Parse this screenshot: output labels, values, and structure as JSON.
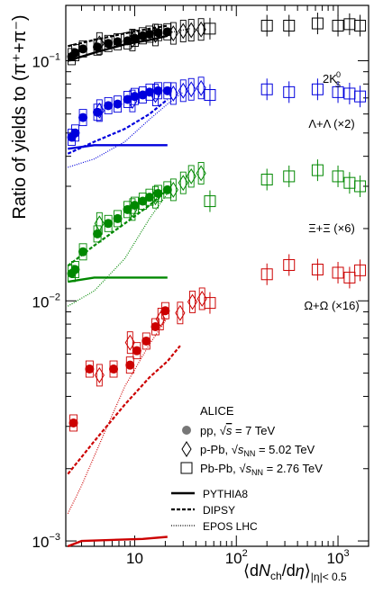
{
  "chart_data": {
    "type": "scatter",
    "title": "",
    "ylabel": "Ratio of yields to (π⁺+π⁻)",
    "xlabel_html": "⟨dN<sub>ch</sub>/dη⟩<sub>|η|&lt;0.5</sub>",
    "xlabel_parts": {
      "a": "⟨d",
      "N": "N",
      "ch": "ch",
      "mid": "/d",
      "eta": "η",
      "close": "⟩",
      "sub": "|η|< 0.5"
    },
    "xscale": "log",
    "yscale": "log",
    "xlim": [
      2.1,
      2000
    ],
    "ylim": [
      0.00095,
      0.17
    ],
    "xticks": [
      {
        "label": "10",
        "value": 10,
        "exp": ""
      },
      {
        "label": "10",
        "value": 100,
        "exp": "2"
      },
      {
        "label": "10",
        "value": 1000,
        "exp": "3"
      }
    ],
    "yticks": [
      {
        "label": "10",
        "value": 0.001,
        "exp": "−3"
      },
      {
        "label": "10",
        "value": 0.01,
        "exp": "−2"
      },
      {
        "label": "10",
        "value": 0.1,
        "exp": "−1"
      }
    ],
    "colors": {
      "k": "#000000",
      "l": "#0000dd",
      "x": "#008800",
      "o": "#cc0000"
    },
    "species": [
      {
        "id": "k",
        "label": "2K⁰S",
        "label_main": "2K",
        "label_sup": "0",
        "label_sub": "S",
        "label_y": 0.081,
        "pp": [
          [
            2.4,
            0.104
          ],
          [
            2.6,
            0.108
          ],
          [
            3.1,
            0.112
          ],
          [
            4.3,
            0.114
          ],
          [
            5.5,
            0.118
          ],
          [
            6.8,
            0.12
          ],
          [
            8.5,
            0.121
          ],
          [
            10,
            0.124
          ],
          [
            12,
            0.127
          ],
          [
            14,
            0.129
          ],
          [
            17,
            0.131
          ],
          [
            21,
            0.132
          ]
        ],
        "ppb": [
          [
            4.5,
            0.118
          ],
          [
            9.5,
            0.122
          ],
          [
            16,
            0.128
          ],
          [
            24,
            0.13
          ],
          [
            30,
            0.133
          ],
          [
            36,
            0.134
          ],
          [
            45,
            0.135
          ]
        ],
        "pbpb": [
          [
            55,
            0.136
          ],
          [
            200,
            0.14
          ],
          [
            330,
            0.14
          ],
          [
            630,
            0.143
          ],
          [
            1000,
            0.14
          ],
          [
            1300,
            0.142
          ],
          [
            1650,
            0.14
          ]
        ],
        "pythia": [
          [
            2.2,
            0.1
          ],
          [
            4,
            0.108
          ],
          [
            8,
            0.117
          ],
          [
            14,
            0.122
          ],
          [
            21,
            0.127
          ]
        ],
        "dipsy": [
          [
            2.2,
            0.115
          ],
          [
            4,
            0.122
          ],
          [
            8,
            0.13
          ],
          [
            14,
            0.136
          ],
          [
            21,
            0.14
          ]
        ],
        "epos": [
          [
            2.2,
            0.099
          ],
          [
            5,
            0.111
          ],
          [
            10,
            0.121
          ],
          [
            20,
            0.13
          ],
          [
            35,
            0.136
          ]
        ]
      },
      {
        "id": "l",
        "label": "Λ+Λ̄ (×2)",
        "label_main": "Λ+Λ (×2)",
        "label_y": 0.0525,
        "pp": [
          [
            2.4,
            0.048
          ],
          [
            2.6,
            0.05
          ],
          [
            3.1,
            0.058
          ],
          [
            4.3,
            0.061
          ],
          [
            5.5,
            0.065
          ],
          [
            6.8,
            0.066
          ],
          [
            8.5,
            0.069
          ],
          [
            10,
            0.071
          ],
          [
            12,
            0.072
          ],
          [
            14,
            0.074
          ],
          [
            17,
            0.075
          ],
          [
            21,
            0.075
          ]
        ],
        "ppb": [
          [
            4.5,
            0.062
          ],
          [
            9.5,
            0.068
          ],
          [
            16,
            0.072
          ],
          [
            24,
            0.073
          ],
          [
            30,
            0.075
          ],
          [
            36,
            0.076
          ],
          [
            45,
            0.077
          ]
        ],
        "pbpb": [
          [
            55,
            0.072
          ],
          [
            200,
            0.076
          ],
          [
            330,
            0.074
          ],
          [
            630,
            0.076
          ],
          [
            1000,
            0.074
          ],
          [
            1300,
            0.073
          ],
          [
            1650,
            0.071
          ]
        ],
        "pythia": [
          [
            2.2,
            0.043
          ],
          [
            4,
            0.0445
          ],
          [
            8,
            0.0445
          ],
          [
            14,
            0.0445
          ],
          [
            21,
            0.0445
          ]
        ],
        "dipsy": [
          [
            2.2,
            0.041
          ],
          [
            4,
            0.046
          ],
          [
            8,
            0.052
          ],
          [
            14,
            0.06
          ],
          [
            21,
            0.069
          ]
        ],
        "epos": [
          [
            2.2,
            0.036
          ],
          [
            4,
            0.039
          ],
          [
            8,
            0.046
          ],
          [
            14,
            0.057
          ],
          [
            21,
            0.066
          ],
          [
            30,
            0.074
          ]
        ]
      },
      {
        "id": "x",
        "label": "Ξ⁻+Ξ̄⁺ (×6)",
        "label_main": "Ξ+Ξ (×6)",
        "label_y": 0.0193,
        "pp": [
          [
            2.4,
            0.013
          ],
          [
            2.6,
            0.0135
          ],
          [
            3.1,
            0.016
          ],
          [
            4.3,
            0.019
          ],
          [
            5.5,
            0.021
          ],
          [
            6.8,
            0.022
          ],
          [
            8.5,
            0.024
          ],
          [
            10,
            0.025
          ],
          [
            12,
            0.026
          ],
          [
            14,
            0.027
          ],
          [
            17,
            0.028
          ],
          [
            21,
            0.029
          ]
        ],
        "ppb": [
          [
            4.5,
            0.021
          ],
          [
            9.5,
            0.024
          ],
          [
            16,
            0.027
          ],
          [
            24,
            0.029
          ],
          [
            30,
            0.031
          ],
          [
            36,
            0.033
          ],
          [
            45,
            0.034
          ]
        ],
        "pbpb": [
          [
            55,
            0.026
          ],
          [
            200,
            0.032
          ],
          [
            330,
            0.033
          ],
          [
            630,
            0.035
          ],
          [
            1000,
            0.033
          ],
          [
            1300,
            0.031
          ],
          [
            1650,
            0.03
          ]
        ],
        "pythia": [
          [
            2.2,
            0.012
          ],
          [
            4,
            0.0125
          ],
          [
            8,
            0.0125
          ],
          [
            14,
            0.0125
          ],
          [
            21,
            0.0125
          ]
        ],
        "dipsy": [
          [
            2.2,
            0.014
          ],
          [
            4,
            0.017
          ],
          [
            8,
            0.021
          ],
          [
            14,
            0.025
          ],
          [
            21,
            0.029
          ]
        ],
        "epos": [
          [
            2.2,
            0.0095
          ],
          [
            4,
            0.011
          ],
          [
            8,
            0.015
          ],
          [
            14,
            0.022
          ],
          [
            21,
            0.028
          ]
        ]
      },
      {
        "id": "o",
        "label": "Ω⁻+Ω̄⁺ (×16)",
        "label_main": "Ω+Ω (×16)",
        "label_y": 0.0092,
        "pp": [
          [
            2.5,
            0.0031
          ],
          [
            3.6,
            0.0052
          ],
          [
            6.2,
            0.0052
          ],
          [
            9,
            0.0054
          ],
          [
            10.5,
            0.0062
          ],
          [
            13,
            0.0068
          ],
          [
            16,
            0.0078
          ],
          [
            20,
            0.0091
          ]
        ],
        "ppb": [
          [
            4.5,
            0.0049
          ],
          [
            9,
            0.0067
          ],
          [
            18,
            0.0084
          ],
          [
            28,
            0.0089
          ],
          [
            37,
            0.0099
          ],
          [
            46,
            0.0102
          ]
        ],
        "pbpb": [
          [
            55,
            0.0098
          ],
          [
            200,
            0.0129
          ],
          [
            330,
            0.0141
          ],
          [
            630,
            0.0135
          ],
          [
            1000,
            0.0131
          ],
          [
            1300,
            0.0125
          ],
          [
            1650,
            0.0134
          ]
        ],
        "pythia": [
          [
            2.2,
            0.00095
          ],
          [
            3,
            0.001
          ],
          [
            6,
            0.00101
          ],
          [
            12,
            0.00102
          ],
          [
            21,
            0.00104
          ]
        ],
        "dipsy": [
          [
            2.2,
            0.0019
          ],
          [
            4,
            0.0026
          ],
          [
            8,
            0.0037
          ],
          [
            14,
            0.0048
          ],
          [
            21,
            0.0056
          ],
          [
            28,
            0.0065
          ]
        ],
        "epos": [
          [
            2.2,
            0.0013
          ],
          [
            3,
            0.0017
          ],
          [
            5,
            0.0028
          ],
          [
            8,
            0.0044
          ],
          [
            14,
            0.0066
          ],
          [
            21,
            0.0085
          ]
        ]
      }
    ],
    "legend": {
      "title": "ALICE",
      "pp": "pp, √s = 7 TeV",
      "ppb": "p-Pb, √sNN = 5.02 TeV",
      "pbpb": "Pb-Pb, √sNN = 2.76 TeV",
      "pythia": "PYTHIA8",
      "dipsy": "DIPSY",
      "epos": "EPOS LHC"
    },
    "legend_text": {
      "pp_a": "pp, ",
      "sqrt": "√",
      "s": "s",
      "pp_b": " = 7 TeV",
      "ppb_a": "p-Pb, ",
      "nn": "NN",
      "ppb_b": " = 5.02 TeV",
      "pbpb_a": "Pb-Pb, ",
      "pbpb_b": " = 2.76 TeV"
    }
  }
}
